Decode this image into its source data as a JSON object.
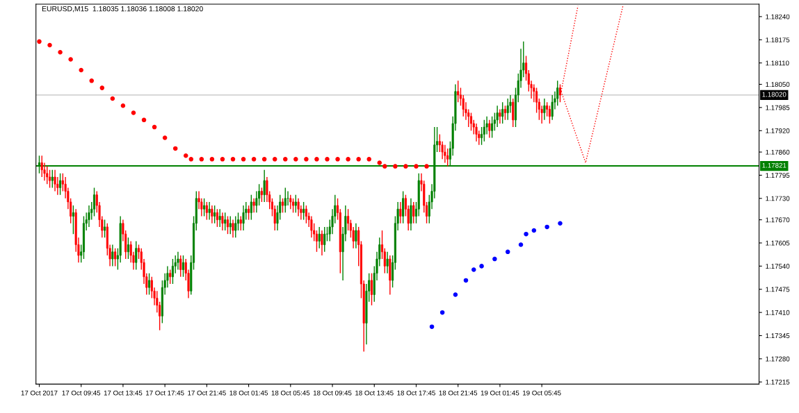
{
  "chart_data": {
    "type": "candlestick",
    "title": "EURUSD,M15  1.18035 1.18036 1.18008 1.18020",
    "x": [
      "2017-10-17T05:45",
      "2017-10-17T06:00",
      "2017-10-17T06:15",
      "2017-10-17T06:30",
      "2017-10-17T06:45",
      "2017-10-17T07:00",
      "2017-10-17T07:15",
      "2017-10-17T07:30",
      "2017-10-17T07:45",
      "2017-10-17T08:00",
      "2017-10-17T08:15",
      "2017-10-17T08:30",
      "2017-10-17T08:45",
      "2017-10-17T09:00",
      "2017-10-17T09:15",
      "2017-10-17T09:30",
      "2017-10-17T09:45",
      "2017-10-17T10:00",
      "2017-10-17T10:15",
      "2017-10-17T10:30",
      "2017-10-17T10:45",
      "2017-10-17T11:00",
      "2017-10-17T11:15",
      "2017-10-17T11:30",
      "2017-10-17T11:45",
      "2017-10-17T12:00",
      "2017-10-17T12:15",
      "2017-10-17T12:30",
      "2017-10-17T12:45",
      "2017-10-17T13:00",
      "2017-10-17T13:15",
      "2017-10-17T13:30",
      "2017-10-17T13:45",
      "2017-10-17T14:00",
      "2017-10-17T14:15",
      "2017-10-17T14:30",
      "2017-10-17T14:45",
      "2017-10-17T15:00",
      "2017-10-17T15:15",
      "2017-10-17T15:30",
      "2017-10-17T15:45",
      "2017-10-17T16:00",
      "2017-10-17T16:15",
      "2017-10-17T16:30",
      "2017-10-17T16:45",
      "2017-10-17T17:00",
      "2017-10-17T17:15",
      "2017-10-17T17:30",
      "2017-10-17T17:45",
      "2017-10-17T18:00",
      "2017-10-17T18:15",
      "2017-10-17T18:30",
      "2017-10-17T18:45",
      "2017-10-17T19:00",
      "2017-10-17T19:15",
      "2017-10-17T19:30",
      "2017-10-17T19:45",
      "2017-10-17T20:00",
      "2017-10-17T20:15",
      "2017-10-17T20:30",
      "2017-10-17T20:45",
      "2017-10-17T21:00",
      "2017-10-17T21:15",
      "2017-10-17T21:30",
      "2017-10-17T21:45",
      "2017-10-17T22:00",
      "2017-10-17T22:15",
      "2017-10-17T22:30",
      "2017-10-17T22:45",
      "2017-10-17T23:00",
      "2017-10-17T23:15",
      "2017-10-17T23:30",
      "2017-10-17T23:45",
      "2017-10-18T00:00",
      "2017-10-18T00:15",
      "2017-10-18T00:30",
      "2017-10-18T00:45",
      "2017-10-18T01:00",
      "2017-10-18T01:15",
      "2017-10-18T01:30",
      "2017-10-18T01:45",
      "2017-10-18T02:00",
      "2017-10-18T02:15",
      "2017-10-18T02:30",
      "2017-10-18T02:45",
      "2017-10-18T03:00",
      "2017-10-18T03:15",
      "2017-10-18T03:30",
      "2017-10-18T03:45",
      "2017-10-18T04:00",
      "2017-10-18T04:15",
      "2017-10-18T04:30",
      "2017-10-18T04:45",
      "2017-10-18T05:00",
      "2017-10-18T05:15",
      "2017-10-18T05:30",
      "2017-10-18T05:45",
      "2017-10-18T06:00",
      "2017-10-18T06:15",
      "2017-10-18T06:30",
      "2017-10-18T06:45",
      "2017-10-18T07:00",
      "2017-10-18T07:15",
      "2017-10-18T07:30",
      "2017-10-18T07:45",
      "2017-10-18T08:00",
      "2017-10-18T08:15",
      "2017-10-18T08:30",
      "2017-10-18T08:45",
      "2017-10-18T09:00",
      "2017-10-18T09:15",
      "2017-10-18T09:30",
      "2017-10-18T09:45",
      "2017-10-18T10:00",
      "2017-10-18T10:15",
      "2017-10-18T10:30",
      "2017-10-18T10:45",
      "2017-10-18T11:00",
      "2017-10-18T11:15",
      "2017-10-18T11:30",
      "2017-10-18T11:45",
      "2017-10-18T12:00",
      "2017-10-18T12:15",
      "2017-10-18T12:30",
      "2017-10-18T12:45",
      "2017-10-18T13:00",
      "2017-10-18T13:15",
      "2017-10-18T13:30",
      "2017-10-18T13:45",
      "2017-10-18T14:00",
      "2017-10-18T14:15",
      "2017-10-18T14:30",
      "2017-10-18T14:45",
      "2017-10-18T15:00",
      "2017-10-18T15:15",
      "2017-10-18T15:30",
      "2017-10-18T15:45",
      "2017-10-18T16:00",
      "2017-10-18T16:15",
      "2017-10-18T16:30",
      "2017-10-18T16:45",
      "2017-10-18T17:00",
      "2017-10-18T17:15",
      "2017-10-18T17:30",
      "2017-10-18T17:45",
      "2017-10-18T18:00",
      "2017-10-18T18:15",
      "2017-10-18T18:30",
      "2017-10-18T18:45",
      "2017-10-18T19:00",
      "2017-10-18T19:15",
      "2017-10-18T19:30",
      "2017-10-18T19:45",
      "2017-10-18T20:00",
      "2017-10-18T20:15",
      "2017-10-18T20:30",
      "2017-10-18T20:45",
      "2017-10-18T21:00",
      "2017-10-18T21:15",
      "2017-10-18T21:30",
      "2017-10-18T21:45",
      "2017-10-18T22:00",
      "2017-10-18T22:15",
      "2017-10-18T22:30",
      "2017-10-18T22:45",
      "2017-10-18T23:00",
      "2017-10-18T23:15",
      "2017-10-18T23:30",
      "2017-10-18T23:45",
      "2017-10-19T00:00",
      "2017-10-19T00:15",
      "2017-10-19T00:30",
      "2017-10-19T00:45",
      "2017-10-19T01:00",
      "2017-10-19T01:15",
      "2017-10-19T01:30",
      "2017-10-19T01:45",
      "2017-10-19T02:00",
      "2017-10-19T02:15",
      "2017-10-19T02:30",
      "2017-10-19T02:45",
      "2017-10-19T03:00",
      "2017-10-19T03:15",
      "2017-10-19T03:30",
      "2017-10-19T03:45",
      "2017-10-19T04:00",
      "2017-10-19T04:15",
      "2017-10-19T04:30",
      "2017-10-19T04:45",
      "2017-10-19T05:00",
      "2017-10-19T05:15",
      "2017-10-19T05:30",
      "2017-10-19T05:45",
      "2017-10-19T06:00",
      "2017-10-19T06:15",
      "2017-10-19T06:30",
      "2017-10-19T06:45",
      "2017-10-19T07:00",
      "2017-10-19T07:15",
      "2017-10-19T07:30"
    ],
    "ohlc": [
      [
        1.1782,
        1.1785,
        1.178,
        1.1783
      ],
      [
        1.1783,
        1.1785,
        1.1779,
        1.1781
      ],
      [
        1.1781,
        1.1783,
        1.1778,
        1.178
      ],
      [
        1.178,
        1.1782,
        1.1777,
        1.1779
      ],
      [
        1.1779,
        1.1781,
        1.1776,
        1.1778
      ],
      [
        1.1778,
        1.1781,
        1.1776,
        1.1779
      ],
      [
        1.1779,
        1.1781,
        1.1775,
        1.1777
      ],
      [
        1.1777,
        1.1779,
        1.1774,
        1.1776
      ],
      [
        1.1776,
        1.178,
        1.1774,
        1.1778
      ],
      [
        1.1778,
        1.178,
        1.1775,
        1.1777
      ],
      [
        1.1777,
        1.1779,
        1.1773,
        1.1775
      ],
      [
        1.1775,
        1.1776,
        1.177,
        1.1772
      ],
      [
        1.1772,
        1.1773,
        1.1766,
        1.1768
      ],
      [
        1.1768,
        1.1771,
        1.1763,
        1.1769
      ],
      [
        1.1769,
        1.177,
        1.1758,
        1.176
      ],
      [
        1.176,
        1.1762,
        1.1755,
        1.1757
      ],
      [
        1.1757,
        1.176,
        1.1755,
        1.1758
      ],
      [
        1.1758,
        1.1768,
        1.1756,
        1.1766
      ],
      [
        1.1766,
        1.1769,
        1.1764,
        1.1767
      ],
      [
        1.1767,
        1.1771,
        1.1765,
        1.1769
      ],
      [
        1.1769,
        1.1772,
        1.1767,
        1.177
      ],
      [
        1.177,
        1.1776,
        1.1768,
        1.1774
      ],
      [
        1.1774,
        1.1775,
        1.1769,
        1.1771
      ],
      [
        1.1771,
        1.1772,
        1.1765,
        1.1767
      ],
      [
        1.1767,
        1.1768,
        1.1762,
        1.1764
      ],
      [
        1.1764,
        1.1767,
        1.1762,
        1.1765
      ],
      [
        1.1765,
        1.1766,
        1.1757,
        1.1759
      ],
      [
        1.1759,
        1.176,
        1.1754,
        1.1756
      ],
      [
        1.1756,
        1.176,
        1.1754,
        1.1758
      ],
      [
        1.1758,
        1.1759,
        1.1754,
        1.1756
      ],
      [
        1.1756,
        1.1759,
        1.1753,
        1.1757
      ],
      [
        1.1757,
        1.1768,
        1.1755,
        1.1766
      ],
      [
        1.1766,
        1.1767,
        1.1761,
        1.1763
      ],
      [
        1.1763,
        1.1764,
        1.1756,
        1.1758
      ],
      [
        1.1758,
        1.1762,
        1.1756,
        1.176
      ],
      [
        1.176,
        1.1761,
        1.1755,
        1.1757
      ],
      [
        1.1757,
        1.1758,
        1.1753,
        1.1755
      ],
      [
        1.1755,
        1.1761,
        1.1753,
        1.1759
      ],
      [
        1.1759,
        1.176,
        1.1756,
        1.1758
      ],
      [
        1.1758,
        1.1759,
        1.1753,
        1.1755
      ],
      [
        1.1755,
        1.1756,
        1.1749,
        1.1751
      ],
      [
        1.1751,
        1.1752,
        1.1746,
        1.1748
      ],
      [
        1.1748,
        1.1752,
        1.1746,
        1.175
      ],
      [
        1.175,
        1.1751,
        1.1745,
        1.1747
      ],
      [
        1.1747,
        1.1748,
        1.1743,
        1.1745
      ],
      [
        1.1745,
        1.1747,
        1.1741,
        1.1743
      ],
      [
        1.1743,
        1.1744,
        1.1736,
        1.174
      ],
      [
        1.174,
        1.175,
        1.1738,
        1.1748
      ],
      [
        1.1748,
        1.1752,
        1.1746,
        1.175
      ],
      [
        1.175,
        1.1754,
        1.1748,
        1.1752
      ],
      [
        1.1752,
        1.1753,
        1.1749,
        1.1751
      ],
      [
        1.1751,
        1.1756,
        1.1749,
        1.1754
      ],
      [
        1.1754,
        1.1757,
        1.1752,
        1.1755
      ],
      [
        1.1755,
        1.1758,
        1.1753,
        1.1756
      ],
      [
        1.1756,
        1.1757,
        1.1751,
        1.1753
      ],
      [
        1.1753,
        1.1757,
        1.1751,
        1.1755
      ],
      [
        1.1755,
        1.1756,
        1.175,
        1.1752
      ],
      [
        1.1752,
        1.1753,
        1.1745,
        1.1747
      ],
      [
        1.1747,
        1.1757,
        1.1746,
        1.1755
      ],
      [
        1.1755,
        1.1768,
        1.1753,
        1.1766
      ],
      [
        1.1766,
        1.1775,
        1.1764,
        1.1773
      ],
      [
        1.1773,
        1.1775,
        1.177,
        1.1772
      ],
      [
        1.1772,
        1.1773,
        1.1768,
        1.177
      ],
      [
        1.177,
        1.1773,
        1.1768,
        1.1771
      ],
      [
        1.1771,
        1.1772,
        1.1767,
        1.1769
      ],
      [
        1.1769,
        1.1772,
        1.1767,
        1.177
      ],
      [
        1.177,
        1.1771,
        1.1766,
        1.1768
      ],
      [
        1.1768,
        1.1771,
        1.1766,
        1.1769
      ],
      [
        1.1769,
        1.177,
        1.1765,
        1.1767
      ],
      [
        1.1767,
        1.177,
        1.1765,
        1.1768
      ],
      [
        1.1768,
        1.1769,
        1.1764,
        1.1766
      ],
      [
        1.1766,
        1.1769,
        1.1764,
        1.1767
      ],
      [
        1.1767,
        1.1768,
        1.1763,
        1.1765
      ],
      [
        1.1765,
        1.1768,
        1.1763,
        1.1766
      ],
      [
        1.1766,
        1.1767,
        1.1762,
        1.1764
      ],
      [
        1.1764,
        1.1768,
        1.1762,
        1.1766
      ],
      [
        1.1766,
        1.1769,
        1.1764,
        1.1767
      ],
      [
        1.1767,
        1.1768,
        1.1764,
        1.1766
      ],
      [
        1.1766,
        1.1771,
        1.1764,
        1.1769
      ],
      [
        1.1769,
        1.1772,
        1.1767,
        1.177
      ],
      [
        1.177,
        1.1771,
        1.1767,
        1.1769
      ],
      [
        1.1769,
        1.1774,
        1.1767,
        1.1772
      ],
      [
        1.1772,
        1.1773,
        1.1769,
        1.1771
      ],
      [
        1.1771,
        1.1775,
        1.1769,
        1.1773
      ],
      [
        1.1773,
        1.1777,
        1.1771,
        1.1775
      ],
      [
        1.1775,
        1.1776,
        1.1772,
        1.1774
      ],
      [
        1.1774,
        1.1781,
        1.1772,
        1.1778
      ],
      [
        1.1778,
        1.1779,
        1.1772,
        1.1774
      ],
      [
        1.1774,
        1.1775,
        1.177,
        1.1772
      ],
      [
        1.1772,
        1.1773,
        1.1768,
        1.177
      ],
      [
        1.177,
        1.1771,
        1.1764,
        1.1766
      ],
      [
        1.1766,
        1.1771,
        1.1764,
        1.1769
      ],
      [
        1.1769,
        1.1774,
        1.1767,
        1.1772
      ],
      [
        1.1772,
        1.1773,
        1.1769,
        1.1771
      ],
      [
        1.1771,
        1.1776,
        1.1769,
        1.1773
      ],
      [
        1.1773,
        1.1775,
        1.1771,
        1.1773
      ],
      [
        1.1773,
        1.1774,
        1.177,
        1.1772
      ],
      [
        1.1772,
        1.1773,
        1.1769,
        1.1771
      ],
      [
        1.1771,
        1.1774,
        1.1769,
        1.1772
      ],
      [
        1.1772,
        1.1773,
        1.1768,
        1.177
      ],
      [
        1.177,
        1.1771,
        1.1767,
        1.1769
      ],
      [
        1.1769,
        1.1772,
        1.1767,
        1.177
      ],
      [
        1.177,
        1.1771,
        1.1766,
        1.1768
      ],
      [
        1.1768,
        1.1769,
        1.1765,
        1.1767
      ],
      [
        1.1767,
        1.1768,
        1.1762,
        1.1764
      ],
      [
        1.1764,
        1.1766,
        1.1761,
        1.1763
      ],
      [
        1.1763,
        1.1764,
        1.1758,
        1.1761
      ],
      [
        1.1761,
        1.1765,
        1.1759,
        1.1763
      ],
      [
        1.1763,
        1.1764,
        1.1757,
        1.176
      ],
      [
        1.176,
        1.1765,
        1.1758,
        1.1763
      ],
      [
        1.1763,
        1.1765,
        1.1761,
        1.1763
      ],
      [
        1.1763,
        1.1767,
        1.1761,
        1.1765
      ],
      [
        1.1765,
        1.177,
        1.1763,
        1.1768
      ],
      [
        1.1768,
        1.1774,
        1.1766,
        1.1771
      ],
      [
        1.1771,
        1.1773,
        1.1767,
        1.1769
      ],
      [
        1.1769,
        1.177,
        1.1752,
        1.1758
      ],
      [
        1.1758,
        1.1765,
        1.175,
        1.1763
      ],
      [
        1.1763,
        1.1771,
        1.1761,
        1.1768
      ],
      [
        1.1768,
        1.177,
        1.1764,
        1.1766
      ],
      [
        1.1766,
        1.1767,
        1.1762,
        1.1764
      ],
      [
        1.1764,
        1.1765,
        1.1759,
        1.1761
      ],
      [
        1.1761,
        1.1766,
        1.1759,
        1.1764
      ],
      [
        1.1764,
        1.1765,
        1.1754,
        1.176
      ],
      [
        1.176,
        1.1761,
        1.1745,
        1.1749
      ],
      [
        1.1749,
        1.175,
        1.173,
        1.1738
      ],
      [
        1.1738,
        1.1749,
        1.1732,
        1.1747
      ],
      [
        1.1747,
        1.1752,
        1.1744,
        1.175
      ],
      [
        1.175,
        1.1752,
        1.1743,
        1.1746
      ],
      [
        1.1746,
        1.1754,
        1.1744,
        1.1752
      ],
      [
        1.1752,
        1.1758,
        1.175,
        1.1756
      ],
      [
        1.1756,
        1.1762,
        1.1754,
        1.176
      ],
      [
        1.176,
        1.1764,
        1.1756,
        1.1758
      ],
      [
        1.1758,
        1.1759,
        1.1752,
        1.1754
      ],
      [
        1.1754,
        1.1758,
        1.1752,
        1.1756
      ],
      [
        1.1756,
        1.1757,
        1.1746,
        1.175
      ],
      [
        1.175,
        1.1757,
        1.1748,
        1.1755
      ],
      [
        1.1755,
        1.1768,
        1.1753,
        1.1766
      ],
      [
        1.1766,
        1.1772,
        1.1764,
        1.177
      ],
      [
        1.177,
        1.1772,
        1.1766,
        1.1768
      ],
      [
        1.1768,
        1.1775,
        1.1766,
        1.1773
      ],
      [
        1.1773,
        1.1774,
        1.1768,
        1.177
      ],
      [
        1.177,
        1.1771,
        1.1764,
        1.1766
      ],
      [
        1.1766,
        1.1773,
        1.1764,
        1.1771
      ],
      [
        1.1771,
        1.1772,
        1.1766,
        1.1768
      ],
      [
        1.1768,
        1.1772,
        1.1766,
        1.177
      ],
      [
        1.177,
        1.178,
        1.1768,
        1.1778
      ],
      [
        1.1778,
        1.178,
        1.1775,
        1.1777
      ],
      [
        1.1777,
        1.1778,
        1.1769,
        1.1771
      ],
      [
        1.1771,
        1.1772,
        1.1766,
        1.1768
      ],
      [
        1.1768,
        1.1774,
        1.1766,
        1.1772
      ],
      [
        1.1772,
        1.1777,
        1.177,
        1.1775
      ],
      [
        1.1775,
        1.1793,
        1.1773,
        1.1788
      ],
      [
        1.1788,
        1.1793,
        1.1786,
        1.1789
      ],
      [
        1.1789,
        1.1791,
        1.1786,
        1.1788
      ],
      [
        1.1788,
        1.1789,
        1.1784,
        1.1786
      ],
      [
        1.1786,
        1.1788,
        1.1783,
        1.1785
      ],
      [
        1.1785,
        1.1787,
        1.1782,
        1.1784
      ],
      [
        1.1784,
        1.1789,
        1.1782,
        1.1787
      ],
      [
        1.1787,
        1.1796,
        1.1785,
        1.1794
      ],
      [
        1.1794,
        1.1805,
        1.1792,
        1.1803
      ],
      [
        1.1803,
        1.1806,
        1.18,
        1.1802
      ],
      [
        1.1802,
        1.1804,
        1.1799,
        1.1801
      ],
      [
        1.1801,
        1.1802,
        1.1796,
        1.1798
      ],
      [
        1.1798,
        1.18,
        1.1795,
        1.1797
      ],
      [
        1.1797,
        1.1798,
        1.1793,
        1.1796
      ],
      [
        1.1796,
        1.1797,
        1.1792,
        1.1794
      ],
      [
        1.1794,
        1.1795,
        1.1791,
        1.1793
      ],
      [
        1.1793,
        1.1794,
        1.1789,
        1.1791
      ],
      [
        1.1791,
        1.1792,
        1.1788,
        1.179
      ],
      [
        1.179,
        1.1793,
        1.1788,
        1.1791
      ],
      [
        1.1791,
        1.1795,
        1.1789,
        1.1793
      ],
      [
        1.1793,
        1.1796,
        1.1791,
        1.1794
      ],
      [
        1.1794,
        1.1795,
        1.179,
        1.1792
      ],
      [
        1.1792,
        1.1796,
        1.179,
        1.1794
      ],
      [
        1.1794,
        1.1797,
        1.1792,
        1.1795
      ],
      [
        1.1795,
        1.1799,
        1.1793,
        1.1797
      ],
      [
        1.1797,
        1.1798,
        1.1794,
        1.1796
      ],
      [
        1.1796,
        1.18,
        1.1794,
        1.1798
      ],
      [
        1.1798,
        1.1799,
        1.1795,
        1.1797
      ],
      [
        1.1797,
        1.1801,
        1.1795,
        1.1799
      ],
      [
        1.1799,
        1.1802,
        1.1797,
        1.18
      ],
      [
        1.18,
        1.1801,
        1.1793,
        1.1795
      ],
      [
        1.1795,
        1.1804,
        1.1793,
        1.1802
      ],
      [
        1.1802,
        1.1808,
        1.18,
        1.1806
      ],
      [
        1.1806,
        1.1815,
        1.1804,
        1.1809
      ],
      [
        1.1809,
        1.1817,
        1.1807,
        1.1811
      ],
      [
        1.1811,
        1.1813,
        1.1806,
        1.1808
      ],
      [
        1.1808,
        1.1809,
        1.1803,
        1.1805
      ],
      [
        1.1805,
        1.1806,
        1.1801,
        1.1804
      ],
      [
        1.1804,
        1.1805,
        1.18,
        1.1803
      ],
      [
        1.1803,
        1.1804,
        1.1797,
        1.18
      ],
      [
        1.18,
        1.1801,
        1.1795,
        1.1798
      ],
      [
        1.1798,
        1.1799,
        1.1794,
        1.1797
      ],
      [
        1.1797,
        1.1801,
        1.1795,
        1.1799
      ],
      [
        1.1799,
        1.18,
        1.1796,
        1.1798
      ],
      [
        1.1798,
        1.1799,
        1.1794,
        1.1796
      ],
      [
        1.1796,
        1.1802,
        1.1795,
        1.18
      ],
      [
        1.18,
        1.1803,
        1.1798,
        1.1801
      ],
      [
        1.1801,
        1.1806,
        1.1799,
        1.1804
      ],
      [
        1.1804,
        1.1805,
        1.18,
        1.1802
      ]
    ],
    "colors": [
      "#008000",
      "#ff0000",
      "#ff0000",
      "#ff0000",
      "#ff0000",
      "#008000",
      "#ff0000",
      "#ff0000",
      "#008000",
      "#ff0000",
      "#ff0000",
      "#ff0000",
      "#ff0000",
      "#008000",
      "#ff0000",
      "#ff0000",
      "#008000",
      "#008000",
      "#008000",
      "#008000",
      "#008000",
      "#008000",
      "#ff0000",
      "#ff0000",
      "#ff0000",
      "#008000",
      "#ff0000",
      "#ff0000",
      "#008000",
      "#ff0000",
      "#008000",
      "#008000",
      "#ff0000",
      "#ff0000",
      "#008000",
      "#ff0000",
      "#ff0000",
      "#008000",
      "#ff0000",
      "#ff0000",
      "#ff0000",
      "#ff0000",
      "#008000",
      "#ff0000",
      "#ff0000",
      "#ff0000",
      "#ff0000",
      "#008000",
      "#008000",
      "#008000",
      "#ff0000",
      "#008000",
      "#008000",
      "#008000",
      "#ff0000",
      "#008000",
      "#ff0000",
      "#ff0000",
      "#008000",
      "#008000",
      "#008000",
      "#ff0000",
      "#ff0000",
      "#008000",
      "#ff0000",
      "#008000",
      "#ff0000",
      "#008000",
      "#ff0000",
      "#008000",
      "#ff0000",
      "#008000",
      "#ff0000",
      "#008000",
      "#ff0000",
      "#008000",
      "#008000",
      "#ff0000",
      "#008000",
      "#008000",
      "#ff0000",
      "#008000",
      "#ff0000",
      "#008000",
      "#008000",
      "#ff0000",
      "#008000",
      "#ff0000",
      "#ff0000",
      "#ff0000",
      "#ff0000",
      "#008000",
      "#008000",
      "#ff0000",
      "#008000",
      "#008000",
      "#ff0000",
      "#ff0000",
      "#008000",
      "#ff0000",
      "#ff0000",
      "#008000",
      "#ff0000",
      "#ff0000",
      "#ff0000",
      "#ff0000",
      "#ff0000",
      "#008000",
      "#ff0000",
      "#008000",
      "#008000",
      "#008000",
      "#008000",
      "#008000",
      "#ff0000",
      "#ff0000",
      "#008000",
      "#008000",
      "#ff0000",
      "#ff0000",
      "#ff0000",
      "#008000",
      "#ff0000",
      "#ff0000",
      "#ff0000",
      "#008000",
      "#008000",
      "#ff0000",
      "#008000",
      "#008000",
      "#008000",
      "#ff0000",
      "#ff0000",
      "#008000",
      "#ff0000",
      "#008000",
      "#008000",
      "#008000",
      "#ff0000",
      "#008000",
      "#ff0000",
      "#ff0000",
      "#008000",
      "#ff0000",
      "#008000",
      "#008000",
      "#ff0000",
      "#ff0000",
      "#ff0000",
      "#008000",
      "#008000",
      "#008000",
      "#008000",
      "#ff0000",
      "#ff0000",
      "#ff0000",
      "#ff0000",
      "#008000",
      "#008000",
      "#008000",
      "#ff0000",
      "#ff0000",
      "#ff0000",
      "#ff0000",
      "#ff0000",
      "#ff0000",
      "#ff0000",
      "#ff0000",
      "#ff0000",
      "#008000",
      "#008000",
      "#008000",
      "#ff0000",
      "#008000",
      "#008000",
      "#008000",
      "#ff0000",
      "#008000",
      "#ff0000",
      "#008000",
      "#008000",
      "#ff0000",
      "#008000",
      "#008000",
      "#008000",
      "#008000",
      "#ff0000",
      "#ff0000",
      "#ff0000",
      "#ff0000",
      "#ff0000",
      "#ff0000",
      "#ff0000",
      "#008000",
      "#ff0000",
      "#ff0000",
      "#008000",
      "#008000",
      "#008000",
      "#ff0000"
    ],
    "xlim": [
      "2017-10-17T05:26",
      "2017-10-20T02:30"
    ],
    "xticks": [
      {
        "value": "2017-10-17T05:45",
        "label": "17 Oct 2017"
      },
      {
        "value": "2017-10-17T09:45",
        "label": "17 Oct 09:45"
      },
      {
        "value": "2017-10-17T13:45",
        "label": "17 Oct 13:45"
      },
      {
        "value": "2017-10-17T17:45",
        "label": "17 Oct 17:45"
      },
      {
        "value": "2017-10-17T21:45",
        "label": "17 Oct 21:45"
      },
      {
        "value": "2017-10-18T01:45",
        "label": "18 Oct 01:45"
      },
      {
        "value": "2017-10-18T05:45",
        "label": "18 Oct 05:45"
      },
      {
        "value": "2017-10-18T09:45",
        "label": "18 Oct 09:45"
      },
      {
        "value": "2017-10-18T13:45",
        "label": "18 Oct 13:45"
      },
      {
        "value": "2017-10-18T17:45",
        "label": "18 Oct 17:45"
      },
      {
        "value": "2017-10-18T21:45",
        "label": "18 Oct 21:45"
      },
      {
        "value": "2017-10-19T01:45",
        "label": "19 Oct 01:45"
      },
      {
        "value": "2017-10-19T05:45",
        "label": "19 Oct 05:45"
      }
    ],
    "ylim": [
      1.17209,
      1.18275
    ],
    "yticks": [
      {
        "value": 1.1824,
        "label": "1.18240"
      },
      {
        "value": 1.18175,
        "label": "1.18175"
      },
      {
        "value": 1.1811,
        "label": "1.18110"
      },
      {
        "value": 1.1805,
        "label": "1.18050"
      },
      {
        "value": 1.17985,
        "label": "1.17985"
      },
      {
        "value": 1.1792,
        "label": "1.17920"
      },
      {
        "value": 1.1786,
        "label": "1.17860"
      },
      {
        "value": 1.17795,
        "label": "1.17795"
      },
      {
        "value": 1.1773,
        "label": "1.17730"
      },
      {
        "value": 1.1767,
        "label": "1.17670"
      },
      {
        "value": 1.17605,
        "label": "1.17605"
      },
      {
        "value": 1.1754,
        "label": "1.17540"
      },
      {
        "value": 1.17475,
        "label": "1.17475"
      },
      {
        "value": 1.1741,
        "label": "1.17410"
      },
      {
        "value": 1.17345,
        "label": "1.17345"
      },
      {
        "value": 1.1728,
        "label": "1.17280"
      },
      {
        "value": 1.17215,
        "label": "1.17215"
      }
    ],
    "ref_lines": [
      {
        "axis": "y",
        "value": 1.1802,
        "label": "1.18020",
        "color": "#c0c0c0"
      },
      {
        "axis": "y",
        "value": 1.17821,
        "label": "1.17821",
        "color": "#008000"
      }
    ],
    "series": [
      {
        "type": "scatter",
        "marker": "circle",
        "color": "#ff0000",
        "x": [
          "2017-10-17T05:45",
          "2017-10-17T06:45",
          "2017-10-17T07:45",
          "2017-10-17T08:45",
          "2017-10-17T09:45",
          "2017-10-17T10:45",
          "2017-10-17T11:45",
          "2017-10-17T12:45",
          "2017-10-17T13:45",
          "2017-10-17T14:45",
          "2017-10-17T15:45",
          "2017-10-17T16:45",
          "2017-10-17T17:45",
          "2017-10-17T18:45",
          "2017-10-17T19:45",
          "2017-10-17T20:15",
          "2017-10-17T21:15",
          "2017-10-17T22:15",
          "2017-10-17T23:15",
          "2017-10-18T00:15",
          "2017-10-18T01:15",
          "2017-10-18T02:15",
          "2017-10-18T03:15",
          "2017-10-18T04:15",
          "2017-10-18T05:15",
          "2017-10-18T06:15",
          "2017-10-18T07:15",
          "2017-10-18T08:15",
          "2017-10-18T09:15",
          "2017-10-18T10:15",
          "2017-10-18T11:15",
          "2017-10-18T12:15",
          "2017-10-18T13:15",
          "2017-10-18T14:15",
          "2017-10-18T14:45",
          "2017-10-18T15:45",
          "2017-10-18T16:45",
          "2017-10-18T17:45",
          "2017-10-18T18:45"
        ],
        "values": [
          1.1817,
          1.1816,
          1.1814,
          1.1812,
          1.1809,
          1.1806,
          1.1804,
          1.1801,
          1.1799,
          1.1797,
          1.1795,
          1.1793,
          1.179,
          1.1787,
          1.1785,
          1.1784,
          1.1784,
          1.1784,
          1.1784,
          1.1784,
          1.1784,
          1.1784,
          1.1784,
          1.1784,
          1.1784,
          1.1784,
          1.1784,
          1.1784,
          1.1784,
          1.1784,
          1.1784,
          1.1784,
          1.1784,
          1.1783,
          1.1782,
          1.1782,
          1.1782,
          1.1782,
          1.1782
        ]
      },
      {
        "type": "scatter",
        "marker": "circle",
        "color": "#0000ff",
        "x": [
          "2017-10-18T19:15",
          "2017-10-18T20:15",
          "2017-10-18T21:30",
          "2017-10-18T22:30",
          "2017-10-18T23:15",
          "2017-10-19T00:00",
          "2017-10-19T01:15",
          "2017-10-19T02:30",
          "2017-10-19T03:45",
          "2017-10-19T04:15",
          "2017-10-19T05:00",
          "2017-10-19T06:15",
          "2017-10-19T07:30"
        ],
        "values": [
          1.1737,
          1.1741,
          1.1746,
          1.175,
          1.1753,
          1.1754,
          1.1756,
          1.1758,
          1.176,
          1.1763,
          1.1764,
          1.1765,
          1.1766
        ]
      },
      {
        "type": "line",
        "line_style": "dotted",
        "color": "#ff0000",
        "x": [
          "2017-10-19T07:36",
          "2017-10-19T09:12"
        ],
        "values": [
          1.1803,
          1.1827
        ]
      },
      {
        "type": "line",
        "line_style": "dotted",
        "color": "#ff0000",
        "x": [
          "2017-10-19T07:36",
          "2017-10-19T09:56",
          "2017-10-19T13:30"
        ],
        "values": [
          1.1803,
          1.1783,
          1.1827
        ]
      }
    ],
    "grid": false
  }
}
